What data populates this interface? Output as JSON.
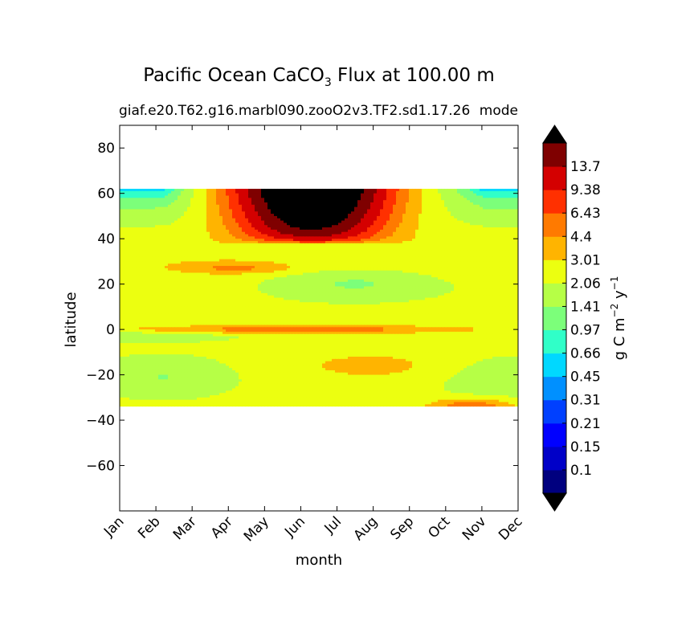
{
  "chart_data": {
    "type": "heatmap",
    "title": {
      "prefix": "Pacific Ocean CaCO",
      "subscript": "3",
      "suffix": " Flux at 100.00 m"
    },
    "subtitle_left": "giaf.e20.T62.g16.marbl090.zooO2v3.TF2.sd1.17.26",
    "subtitle_right": "mode",
    "xlabel": "month",
    "ylabel": "latitude",
    "x_ticks": [
      "Jan",
      "Feb",
      "Mar",
      "Apr",
      "May",
      "Jun",
      "Jul",
      "Aug",
      "Sep",
      "Oct",
      "Nov",
      "Dec"
    ],
    "y_ticks": [
      80,
      60,
      40,
      20,
      0,
      -20,
      -40,
      -60
    ],
    "y_tick_labels": [
      "80",
      "60",
      "40",
      "20",
      "0",
      "−20",
      "−40",
      "−60"
    ],
    "ylim": [
      -80,
      90
    ],
    "data_lat_range": [
      -34,
      62
    ],
    "colorbar": {
      "label_prefix": "g C m",
      "label_exp1": "−2",
      "label_mid": " y",
      "label_exp2": "−1",
      "levels": [
        0.1,
        0.15,
        0.21,
        0.31,
        0.45,
        0.66,
        0.97,
        1.41,
        2.06,
        3.01,
        4.4,
        6.43,
        9.38,
        13.7
      ],
      "level_labels": [
        "0.1",
        "0.15",
        "0.21",
        "0.31",
        "0.45",
        "0.66",
        "0.97",
        "1.41",
        "2.06",
        "3.01",
        "4.4",
        "6.43",
        "9.38",
        "13.7"
      ],
      "colors": [
        "#00007f",
        "#0000c8",
        "#0000ff",
        "#0040ff",
        "#0090ff",
        "#00d8ff",
        "#30ffc8",
        "#7cff7a",
        "#b6ff46",
        "#ecff10",
        "#ffb400",
        "#ff7a00",
        "#ff3000",
        "#d40000",
        "#7f0000"
      ],
      "under_color": "#000000",
      "over_color": "#000000"
    }
  }
}
